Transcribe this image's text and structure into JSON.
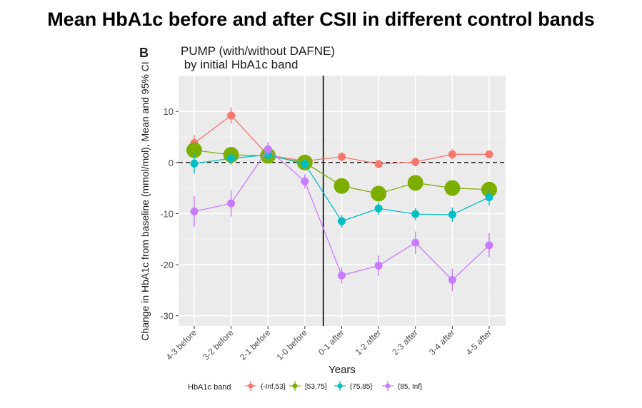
{
  "slide": {
    "title": "Mean HbA1c before and after CSII in different control bands"
  },
  "chart_data": {
    "type": "line",
    "panel_letter": "B",
    "title_line1": "PUMP (with/without DAFNE)",
    "title_line2": " by initial HbA1c band",
    "xlabel": "Years",
    "ylabel": "Change in HbA1c from baseline (mmol/mol), Mean and 95% CI",
    "categories": [
      "4-3 before",
      "3-2 before",
      "2-1 before",
      "1-0 before",
      "0-1 after",
      "1-2 after",
      "2-3 after",
      "3-4 after",
      "4-5 after"
    ],
    "ylim": [
      -32,
      17
    ],
    "yticks": [
      -30,
      -20,
      -10,
      0,
      10
    ],
    "ytick_labels": [
      "-30",
      "-20",
      "-10",
      "0",
      "10"
    ],
    "reference_line_y": 0,
    "treatment_start_between": [
      "1-0 before",
      "0-1 after"
    ],
    "legend_title": "HbA1c band",
    "legend_position": "bottom",
    "series": [
      {
        "name": "(-Inf,53]",
        "color": "#f8766d",
        "values": [
          3.8,
          9.2,
          1.4,
          0.3,
          1.1,
          -0.3,
          0.1,
          1.6,
          1.6
        ],
        "ci": [
          [
            2.2,
            5.4
          ],
          [
            7.6,
            10.8
          ],
          [
            0.2,
            2.6
          ],
          [
            -0.4,
            1.0
          ],
          [
            0.2,
            2.0
          ],
          [
            -1.0,
            0.4
          ],
          [
            -0.8,
            1.0
          ],
          [
            0.6,
            2.6
          ],
          [
            0.8,
            2.4
          ]
        ],
        "marker_size": 1
      },
      {
        "name": "[53,75]",
        "color": "#7cae00",
        "values": [
          2.4,
          1.5,
          1.3,
          0.0,
          -4.6,
          -6.1,
          -4.0,
          -5.0,
          -5.3
        ],
        "ci": [
          [
            1.6,
            3.2
          ],
          [
            0.8,
            2.2
          ],
          [
            0.6,
            2.0
          ],
          [
            -0.6,
            0.6
          ],
          [
            -5.4,
            -3.8
          ],
          [
            -6.9,
            -5.3
          ],
          [
            -4.8,
            -3.2
          ],
          [
            -5.8,
            -4.2
          ],
          [
            -6.1,
            -4.5
          ]
        ],
        "marker_size": 2
      },
      {
        "name": "(75,85]",
        "color": "#00bfc4",
        "values": [
          -0.2,
          0.8,
          1.5,
          -0.3,
          -11.5,
          -9.0,
          -10.1,
          -10.2,
          -6.8
        ],
        "ci": [
          [
            -2.2,
            1.8
          ],
          [
            -0.4,
            2.0
          ],
          [
            0.4,
            2.6
          ],
          [
            -1.2,
            0.6
          ],
          [
            -12.7,
            -10.3
          ],
          [
            -10.2,
            -7.8
          ],
          [
            -11.3,
            -8.9
          ],
          [
            -11.6,
            -8.8
          ],
          [
            -8.4,
            -5.2
          ]
        ],
        "marker_size": 1
      },
      {
        "name": "(85, Inf]",
        "color": "#c77cff",
        "values": [
          -9.6,
          -8.0,
          2.6,
          -3.7,
          -22.1,
          -20.2,
          -15.7,
          -23.0,
          -16.2
        ],
        "ci": [
          [
            -12.6,
            -6.6
          ],
          [
            -10.6,
            -5.4
          ],
          [
            1.2,
            4.0
          ],
          [
            -5.1,
            -2.3
          ],
          [
            -23.7,
            -20.5
          ],
          [
            -22.2,
            -18.2
          ],
          [
            -17.9,
            -13.5
          ],
          [
            -25.2,
            -20.8
          ],
          [
            -18.6,
            -13.8
          ]
        ],
        "marker_size": 1
      }
    ]
  }
}
